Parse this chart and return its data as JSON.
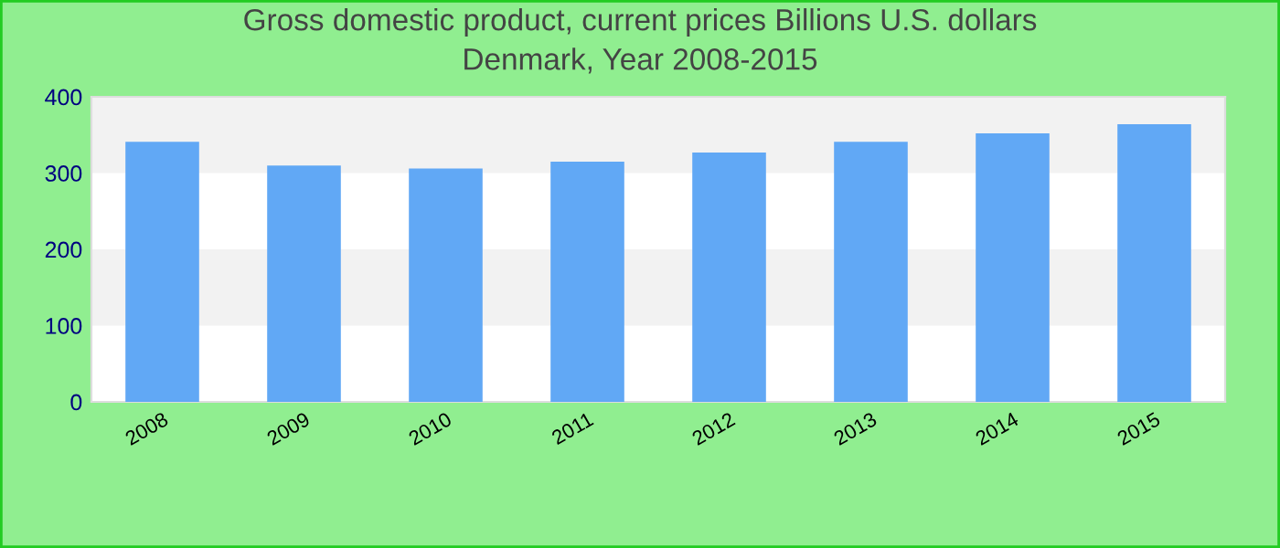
{
  "chart_data": {
    "type": "bar",
    "title": "Gross domestic product, current prices Billions U.S. dollars\nDenmark, Year 2008-2015",
    "categories": [
      "2008",
      "2009",
      "2010",
      "2011",
      "2012",
      "2013",
      "2014",
      "2015"
    ],
    "values": [
      341,
      310,
      306,
      315,
      327,
      341,
      352,
      364
    ],
    "color": "#61a8f5",
    "ylim": [
      0,
      400
    ],
    "yticks": [
      0,
      100,
      200,
      300,
      400
    ],
    "bands": [
      {
        "axis": "y",
        "from": 100,
        "to": 200,
        "color": "#f2f2f2"
      },
      {
        "axis": "y",
        "from": 300,
        "to": 400,
        "color": "#f2f2f2"
      }
    ]
  }
}
